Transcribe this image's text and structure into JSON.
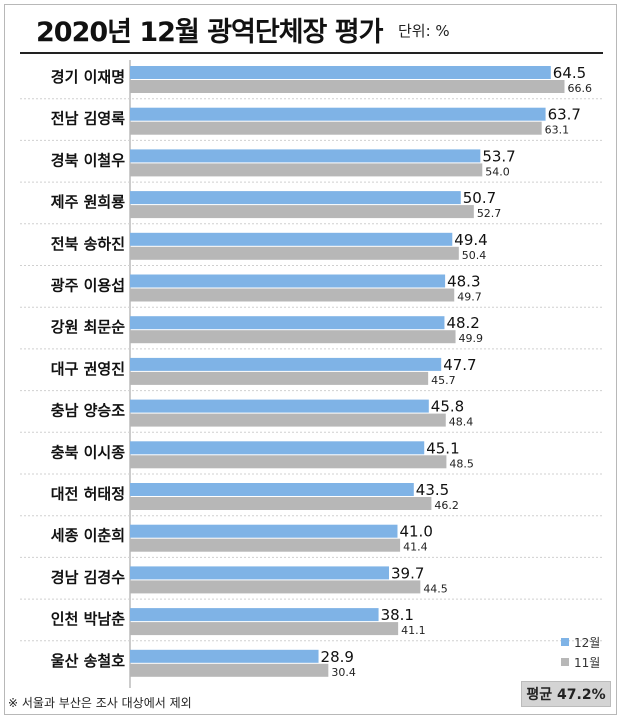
{
  "header": {
    "title": "2020년 12월 광역단체장 평가",
    "unit": "단위: %"
  },
  "footnote": "※ 서울과 부산은 조사 대상에서 제외",
  "average": "평균 47.2%",
  "colors": {
    "dec": "#7fb3e6",
    "nov": "#b7b7b7",
    "text": "#222222"
  },
  "chart_data": {
    "type": "bar",
    "orientation": "horizontal",
    "title": "2020년 12월 광역단체장 평가",
    "unit": "단위: %",
    "categories": [
      "경기 이재명",
      "전남 김영록",
      "경북 이철우",
      "제주 원희룡",
      "전북 송하진",
      "광주 이용섭",
      "강원 최문순",
      "대구 권영진",
      "충남 양승조",
      "충북 이시종",
      "대전 허태정",
      "세종 이춘희",
      "경남 김경수",
      "인천 박남춘",
      "울산 송철호"
    ],
    "series": [
      {
        "name": "12월",
        "values": [
          64.5,
          63.7,
          53.7,
          50.7,
          49.4,
          48.3,
          48.2,
          47.7,
          45.8,
          45.1,
          43.5,
          41.0,
          39.7,
          38.1,
          28.9
        ]
      },
      {
        "name": "11월",
        "values": [
          66.6,
          63.1,
          54.0,
          52.7,
          50.4,
          49.7,
          49.9,
          45.7,
          48.4,
          48.5,
          46.2,
          41.4,
          44.5,
          41.1,
          30.4
        ]
      }
    ],
    "value_labels": {
      "12월": [
        "64.5",
        "63.7",
        "53.7",
        "50.7",
        "49.4",
        "48.3",
        "48.2",
        "47.7",
        "45.8",
        "45.1",
        "43.5",
        "41.0",
        "39.7",
        "38.1",
        "28.9"
      ],
      "11월": [
        "66.6",
        "63.1",
        "54.0",
        "52.7",
        "50.4",
        "49.7",
        "49.9",
        "45.7",
        "48.4",
        "48.5",
        "46.2",
        "41.4",
        "44.5",
        "41.1",
        "30.4"
      ]
    },
    "xlim": [
      0,
      70
    ],
    "grid": false,
    "legend": "bottom-right",
    "average": 47.2
  }
}
